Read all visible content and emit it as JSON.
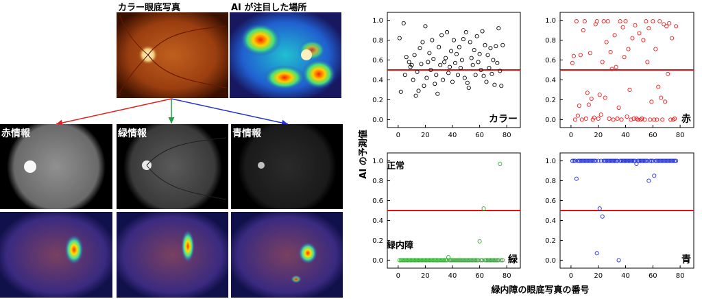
{
  "left_panel": {
    "top_labels": {
      "color": "カラー眼底写真",
      "attention": "AI が注目した場所"
    },
    "channels": {
      "red": "赤情報",
      "green": "緑情報",
      "blue": "青情報"
    },
    "arrow_colors": {
      "red": "#e02020",
      "green": "#20a040",
      "blue": "#2030d0"
    }
  },
  "charts_text": {
    "ylabel": "AI の予測値",
    "xlabel": "緑内障の眼底写真の番号",
    "annotation_normal": "正常",
    "annotation_glaucoma": "緑内障"
  },
  "chart_data": [
    {
      "type": "scatter",
      "label": "カラー",
      "color": "#000000",
      "xlim": [
        -8,
        90
      ],
      "ylim": [
        -0.08,
        1.08
      ],
      "xticks": [
        0,
        20,
        40,
        60,
        80
      ],
      "yticks": [
        0.0,
        0.2,
        0.4,
        0.6,
        0.8,
        1.0
      ],
      "threshold": 0.5,
      "x": [
        1,
        2,
        4,
        5,
        6,
        8,
        9,
        10,
        11,
        12,
        13,
        14,
        15,
        16,
        17,
        18,
        19,
        20,
        21,
        22,
        23,
        24,
        25,
        26,
        27,
        28,
        29,
        30,
        31,
        32,
        33,
        34,
        35,
        36,
        37,
        38,
        39,
        40,
        41,
        42,
        43,
        44,
        45,
        46,
        47,
        48,
        49,
        50,
        51,
        52,
        53,
        54,
        55,
        56,
        57,
        58,
        59,
        60,
        61,
        62,
        63,
        64,
        65,
        66,
        67,
        68,
        69,
        70,
        71,
        72,
        73,
        74,
        75,
        76,
        77
      ],
      "y": [
        0.82,
        0.28,
        0.97,
        0.45,
        0.63,
        0.58,
        0.53,
        0.55,
        0.4,
        0.65,
        0.24,
        0.48,
        0.29,
        0.72,
        0.56,
        0.78,
        0.34,
        0.94,
        0.42,
        0.58,
        0.67,
        0.5,
        0.8,
        0.61,
        0.36,
        0.45,
        0.26,
        0.73,
        0.55,
        0.85,
        0.4,
        0.58,
        0.62,
        0.88,
        0.47,
        0.53,
        0.69,
        0.38,
        0.8,
        0.57,
        0.66,
        0.45,
        0.73,
        0.52,
        0.6,
        0.81,
        0.42,
        0.88,
        0.37,
        0.32,
        0.78,
        0.62,
        0.55,
        0.7,
        0.45,
        0.84,
        0.58,
        0.66,
        0.5,
        0.89,
        0.44,
        0.75,
        0.38,
        0.65,
        0.52,
        0.72,
        0.46,
        0.6,
        0.35,
        0.74,
        0.57,
        0.92,
        0.49,
        0.34,
        0.75
      ]
    },
    {
      "type": "scatter",
      "label": "赤",
      "color": "#e02020",
      "xlim": [
        -8,
        90
      ],
      "ylim": [
        -0.08,
        1.08
      ],
      "xticks": [
        0,
        20,
        40,
        60,
        80
      ],
      "yticks": [
        0.0,
        0.2,
        0.4,
        0.6,
        0.8,
        1.0
      ],
      "threshold": 0.5,
      "x": [
        1,
        2,
        3,
        4,
        5,
        6,
        7,
        8,
        9,
        10,
        11,
        12,
        13,
        14,
        15,
        16,
        17,
        18,
        19,
        20,
        21,
        22,
        23,
        24,
        25,
        26,
        27,
        28,
        29,
        30,
        31,
        32,
        33,
        34,
        35,
        36,
        37,
        38,
        39,
        40,
        41,
        42,
        43,
        44,
        45,
        46,
        47,
        48,
        49,
        50,
        51,
        52,
        53,
        54,
        55,
        56,
        57,
        58,
        59,
        60,
        61,
        62,
        63,
        64,
        65,
        66,
        67,
        68,
        69,
        70,
        71,
        72,
        73,
        74,
        75,
        76,
        77
      ],
      "y": [
        0.57,
        0.64,
        0.0,
        0.99,
        0.04,
        0.14,
        0.65,
        0.0,
        0.9,
        0.99,
        0.01,
        0.27,
        0.15,
        0.67,
        0.21,
        0.0,
        0.02,
        0.96,
        0.99,
        0.01,
        0.25,
        0.05,
        0.58,
        0.99,
        0.22,
        0.78,
        0.99,
        0.01,
        0.68,
        0.51,
        0.0,
        0.85,
        0.53,
        0.01,
        0.12,
        0.99,
        0.0,
        0.93,
        0.63,
        0.99,
        0.03,
        0.71,
        0.3,
        0.0,
        0.82,
        0.01,
        0.95,
        0.01,
        0.0,
        0.87,
        0.0,
        0.01,
        0.8,
        0.0,
        0.99,
        0.58,
        0.92,
        0.0,
        0.18,
        0.99,
        0.0,
        0.71,
        0.0,
        0.33,
        0.99,
        0.22,
        0.0,
        0.96,
        0.18,
        0.94,
        0.46,
        0.97,
        0.0,
        0.82,
        0.0,
        0.01,
        0.94
      ]
    },
    {
      "type": "scatter",
      "label": "緑",
      "color": "#30b030",
      "xlim": [
        -8,
        90
      ],
      "ylim": [
        -0.08,
        1.08
      ],
      "xticks": [
        0,
        20,
        40,
        60,
        80
      ],
      "yticks": [
        0.0,
        0.2,
        0.4,
        0.6,
        0.8,
        1.0
      ],
      "threshold": 0.5,
      "x": [
        1,
        2,
        3,
        4,
        5,
        6,
        7,
        8,
        9,
        10,
        11,
        12,
        13,
        14,
        15,
        16,
        17,
        18,
        19,
        20,
        21,
        22,
        23,
        24,
        25,
        26,
        27,
        28,
        29,
        30,
        31,
        32,
        33,
        34,
        35,
        36,
        37,
        38,
        39,
        40,
        41,
        42,
        43,
        44,
        45,
        46,
        47,
        48,
        49,
        50,
        51,
        52,
        53,
        54,
        55,
        56,
        57,
        58,
        59,
        60,
        61,
        62,
        63,
        64,
        65,
        66,
        67,
        68,
        69,
        70,
        71,
        72,
        73,
        74,
        75,
        76,
        77
      ],
      "y": [
        0.0,
        0.0,
        0.0,
        0.0,
        0.0,
        0.0,
        0.0,
        0.0,
        0.0,
        0.0,
        0.0,
        0.0,
        0.0,
        0.0,
        0.0,
        0.0,
        0.0,
        0.0,
        0.0,
        0.0,
        0.0,
        0.0,
        0.0,
        0.0,
        0.0,
        0.0,
        0.0,
        0.0,
        0.0,
        0.0,
        0.0,
        0.0,
        0.0,
        0.0,
        0.0,
        0.0,
        0.03,
        0.0,
        0.0,
        0.0,
        0.0,
        0.0,
        0.0,
        0.0,
        0.0,
        0.0,
        0.0,
        0.0,
        0.0,
        0.0,
        0.0,
        0.0,
        0.0,
        0.0,
        0.0,
        0.0,
        0.0,
        0.0,
        0.0,
        0.19,
        0.0,
        0.0,
        0.52,
        0.0,
        0.0,
        0.0,
        0.0,
        0.0,
        0.0,
        0.0,
        0.0,
        0.0,
        0.0,
        0.0,
        0.97,
        0.0,
        0.0
      ]
    },
    {
      "type": "scatter",
      "label": "青",
      "color": "#2030d0",
      "xlim": [
        -8,
        90
      ],
      "ylim": [
        -0.08,
        1.08
      ],
      "xticks": [
        0,
        20,
        40,
        60,
        80
      ],
      "yticks": [
        0.0,
        0.2,
        0.4,
        0.6,
        0.8,
        1.0
      ],
      "threshold": 0.5,
      "x": [
        1,
        2,
        3,
        4,
        5,
        6,
        7,
        8,
        9,
        10,
        11,
        12,
        13,
        14,
        15,
        16,
        17,
        18,
        19,
        20,
        21,
        22,
        23,
        24,
        25,
        26,
        27,
        28,
        29,
        30,
        31,
        32,
        33,
        34,
        35,
        36,
        37,
        38,
        39,
        40,
        41,
        42,
        43,
        44,
        45,
        46,
        47,
        48,
        49,
        50,
        51,
        52,
        53,
        54,
        55,
        56,
        57,
        58,
        59,
        60,
        61,
        62,
        63,
        64,
        65,
        66,
        67,
        68,
        69,
        70,
        71,
        72,
        73,
        74,
        75,
        76,
        77
      ],
      "y": [
        1.0,
        1.0,
        1.0,
        0.82,
        1.0,
        1.0,
        1.0,
        1.0,
        1.0,
        1.0,
        1.0,
        1.0,
        1.0,
        1.0,
        1.0,
        1.0,
        1.0,
        1.0,
        0.07,
        1.0,
        0.52,
        1.0,
        0.44,
        1.0,
        1.0,
        1.0,
        1.0,
        1.0,
        1.0,
        1.0,
        1.0,
        1.0,
        1.0,
        1.0,
        0.0,
        1.0,
        1.0,
        1.0,
        1.0,
        1.0,
        1.0,
        1.0,
        1.0,
        1.0,
        1.0,
        1.0,
        1.0,
        0.97,
        1.0,
        1.0,
        1.0,
        1.0,
        1.0,
        1.0,
        1.0,
        1.0,
        0.8,
        1.0,
        1.0,
        1.0,
        0.85,
        1.0,
        1.0,
        1.0,
        1.0,
        1.0,
        1.0,
        1.0,
        1.0,
        1.0,
        1.0,
        1.0,
        1.0,
        1.0,
        1.0,
        1.0,
        1.0
      ]
    }
  ]
}
